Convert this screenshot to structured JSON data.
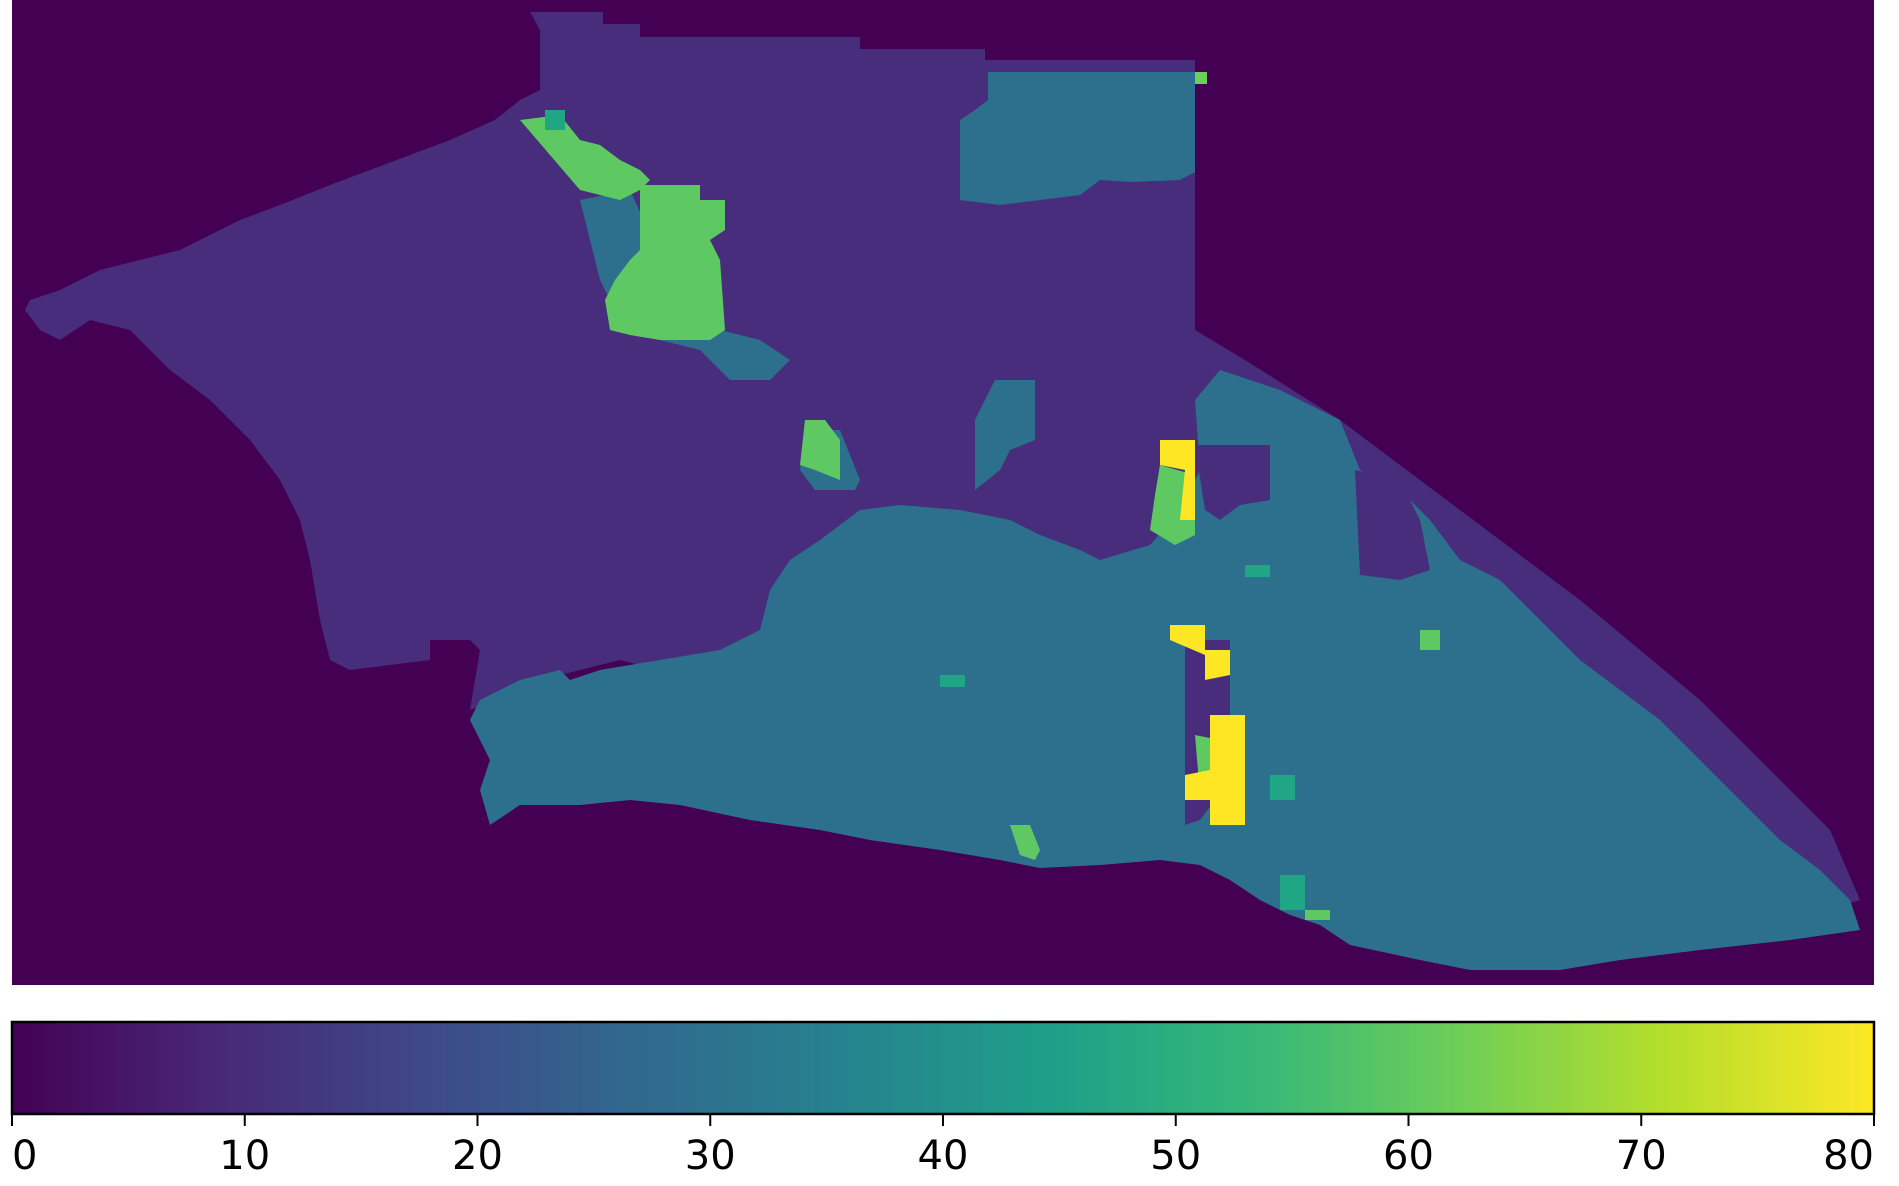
{
  "chart_data": {
    "type": "heatmap",
    "title": "",
    "xlabel": "",
    "ylabel": "",
    "colormap": "viridis",
    "background_value": 0,
    "region_levels": {
      "purple_region": 12,
      "teal_region": 32,
      "green_patches": 58,
      "bright_green_patches": 54,
      "yellow_patches": 80
    },
    "colorbar": {
      "min": 0,
      "max": 80,
      "ticks": [
        0,
        10,
        20,
        30,
        40,
        50,
        60,
        70,
        80
      ],
      "tick_labels": [
        "0",
        "10",
        "20",
        "30",
        "40",
        "50",
        "60",
        "70",
        "80"
      ],
      "orientation": "horizontal",
      "placement": "bottom"
    }
  },
  "colors": {
    "viridis_stops": [
      "#440154",
      "#482878",
      "#3e4989",
      "#31688e",
      "#26828e",
      "#1f9e89",
      "#35b779",
      "#6ece58",
      "#b5de2b",
      "#fde725"
    ],
    "background": "#440154",
    "purple": "#472d7b",
    "teal": "#2d708e",
    "teal_green": "#21a685",
    "green": "#5ec962",
    "yellow": "#fde725"
  }
}
